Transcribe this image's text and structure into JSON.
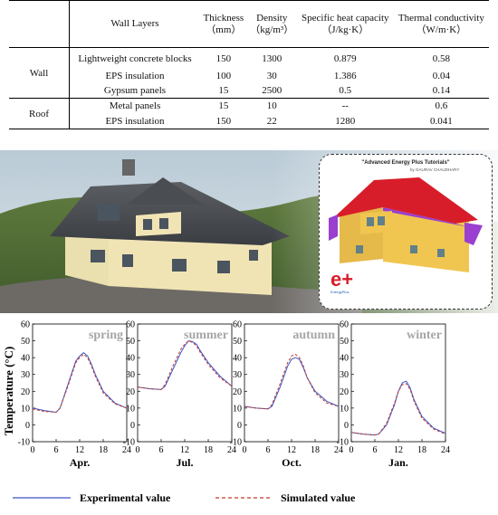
{
  "table": {
    "headers": {
      "wall_layers": "Wall Layers",
      "thickness": "Thickness",
      "thickness_unit": "（mm）",
      "density": "Density",
      "density_unit": "（kg/m³）",
      "heat_capacity": "Specific heat capacity",
      "heat_capacity_unit": "（J/kg·K）",
      "conductivity": "Thermal conductivity",
      "conductivity_unit": "（W/m·K）"
    },
    "groups": {
      "wall": "Wall",
      "roof": "Roof"
    },
    "rows": [
      {
        "layer": "Lightweight concrete blocks",
        "thickness": "150",
        "density": "1300",
        "heat_capacity": "0.879",
        "conductivity": "0.58"
      },
      {
        "layer": "EPS insulation",
        "thickness": "100",
        "density": "30",
        "heat_capacity": "1.386",
        "conductivity": "0.04"
      },
      {
        "layer": "Gypsum panels",
        "thickness": "15",
        "density": "2500",
        "heat_capacity": "0.5",
        "conductivity": "0.14"
      },
      {
        "layer": "Metal panels",
        "thickness": "15",
        "density": "10",
        "heat_capacity": "--",
        "conductivity": "0.6"
      },
      {
        "layer": "EPS insulation",
        "thickness": "150",
        "density": "22",
        "heat_capacity": "1280",
        "conductivity": "0.041"
      }
    ]
  },
  "model_panel": {
    "title": "\"Advanced Energy Plus Tutorials\"",
    "byline": "by GAURAV CHAUDHARY",
    "logo": "EnergyPlus",
    "logo_letters": "e+"
  },
  "colors": {
    "experimental": "#3a55c8",
    "simulated": "#c0392b"
  },
  "chart_data": {
    "type": "line",
    "ylabel": "Temperature (°C)",
    "ylim": [
      -10,
      60
    ],
    "yticks": [
      -10,
      0,
      10,
      20,
      30,
      40,
      50,
      60
    ],
    "xlim": [
      0,
      24
    ],
    "xticks": [
      0,
      6,
      12,
      18,
      24
    ],
    "legend": {
      "placement": "bottom",
      "experimental": "Experimental value",
      "simulated": "Simulated value"
    },
    "panels": [
      {
        "season": "spring",
        "month": "Apr.",
        "x": [
          0,
          3,
          6,
          7,
          9,
          11,
          12,
          13,
          14,
          15,
          16,
          18,
          21,
          24
        ],
        "experimental": [
          10,
          8.5,
          7.5,
          10,
          24,
          38,
          41,
          43,
          41,
          36,
          30,
          20,
          13,
          10
        ],
        "simulated": [
          9.5,
          8,
          7.5,
          10,
          23,
          37,
          40,
          42,
          40,
          35,
          29,
          19,
          12.5,
          10
        ]
      },
      {
        "season": "summer",
        "month": "Jul.",
        "x": [
          0,
          3,
          6,
          7,
          9,
          11,
          12,
          13,
          14,
          15,
          16,
          18,
          21,
          24
        ],
        "experimental": [
          22.5,
          21.5,
          21,
          23,
          33,
          43,
          47,
          50,
          49.5,
          48,
          44,
          37,
          29,
          23
        ],
        "simulated": [
          22.5,
          21.5,
          21,
          24,
          35,
          45,
          48,
          50,
          49,
          47,
          43,
          36,
          28,
          23
        ]
      },
      {
        "season": "autumn",
        "month": "Oct.",
        "x": [
          0,
          3,
          6,
          7,
          9,
          11,
          12,
          13,
          14,
          15,
          16,
          18,
          21,
          24
        ],
        "experimental": [
          11,
          10,
          9.5,
          11,
          22,
          35,
          39,
          40,
          39,
          34,
          28,
          20,
          14,
          11
        ],
        "simulated": [
          11,
          10,
          9.5,
          12,
          24,
          37,
          41,
          42,
          40,
          35,
          28,
          19,
          13,
          11
        ]
      },
      {
        "season": "winter",
        "month": "Jan.",
        "x": [
          0,
          3,
          6,
          7,
          9,
          11,
          12,
          13,
          14,
          15,
          16,
          18,
          21,
          24
        ],
        "experimental": [
          -4.5,
          -5.5,
          -6,
          -5.5,
          0,
          12,
          20,
          25,
          26,
          22,
          15,
          5,
          -2,
          -5
        ],
        "simulated": [
          -4.5,
          -5.5,
          -6,
          -5.5,
          1,
          13,
          20,
          24,
          24.5,
          21,
          14,
          4,
          -2.5,
          -5.5
        ]
      }
    ]
  }
}
